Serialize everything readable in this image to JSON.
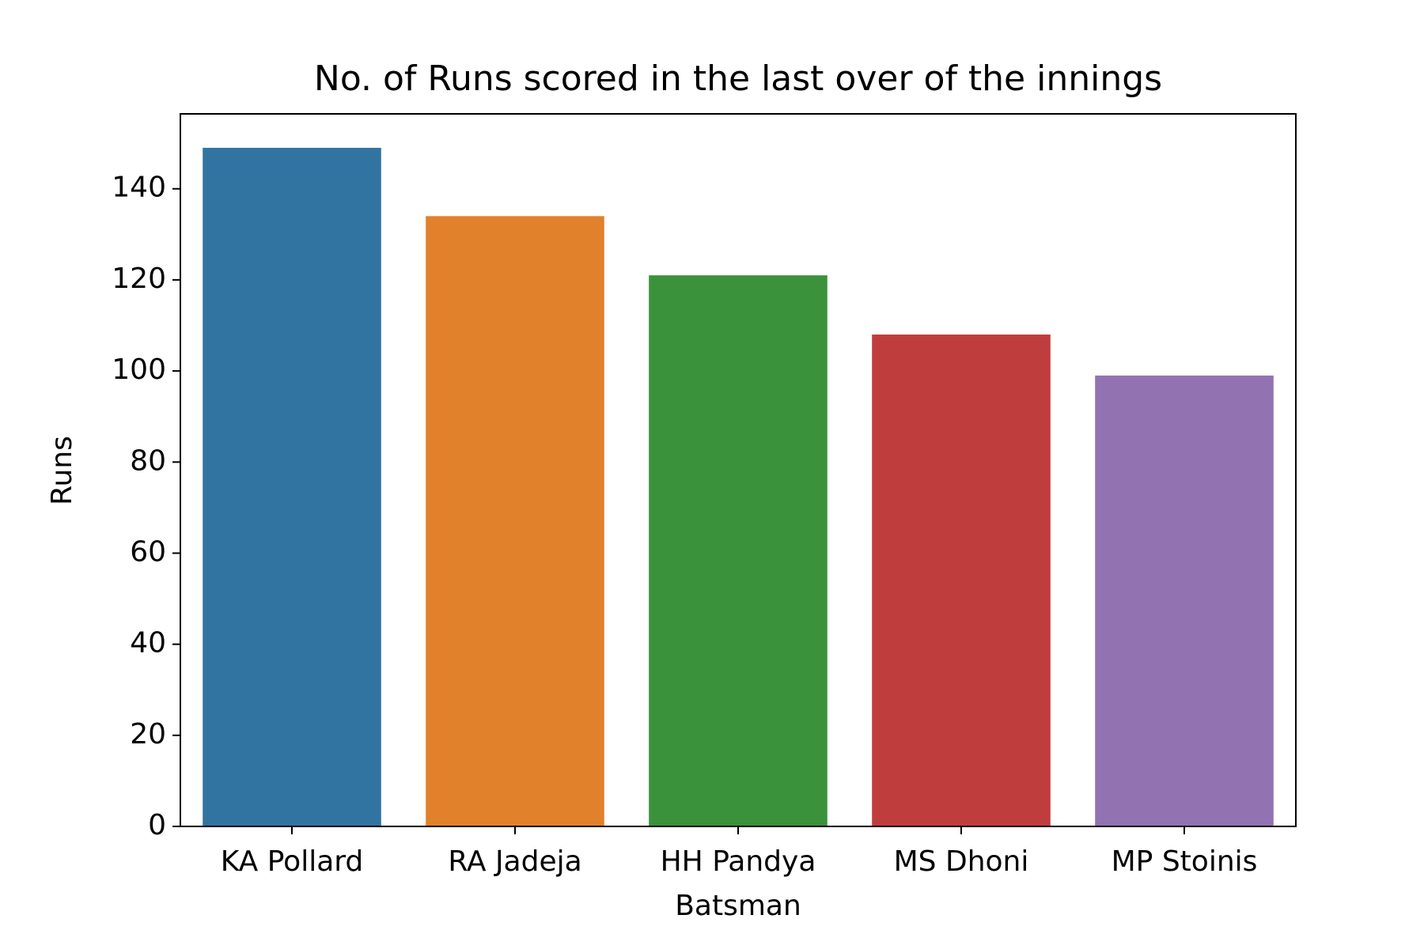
{
  "chart_data": {
    "type": "bar",
    "title": "No. of Runs scored in the last over of the innings",
    "x_label": "Batsman",
    "y_label": "Runs",
    "categories": [
      "KA Pollard",
      "RA Jadeja",
      "HH Pandya",
      "MS Dhoni",
      "MP Stoinis"
    ],
    "values": [
      149,
      134,
      121,
      108,
      99
    ],
    "colors": [
      "#3274a1",
      "#e1812c",
      "#3a923a",
      "#c03d3e",
      "#9372b2"
    ],
    "ylim": [
      0,
      156.45
    ],
    "yticks": [
      0,
      20,
      40,
      60,
      80,
      100,
      120,
      140
    ],
    "grid": false
  }
}
